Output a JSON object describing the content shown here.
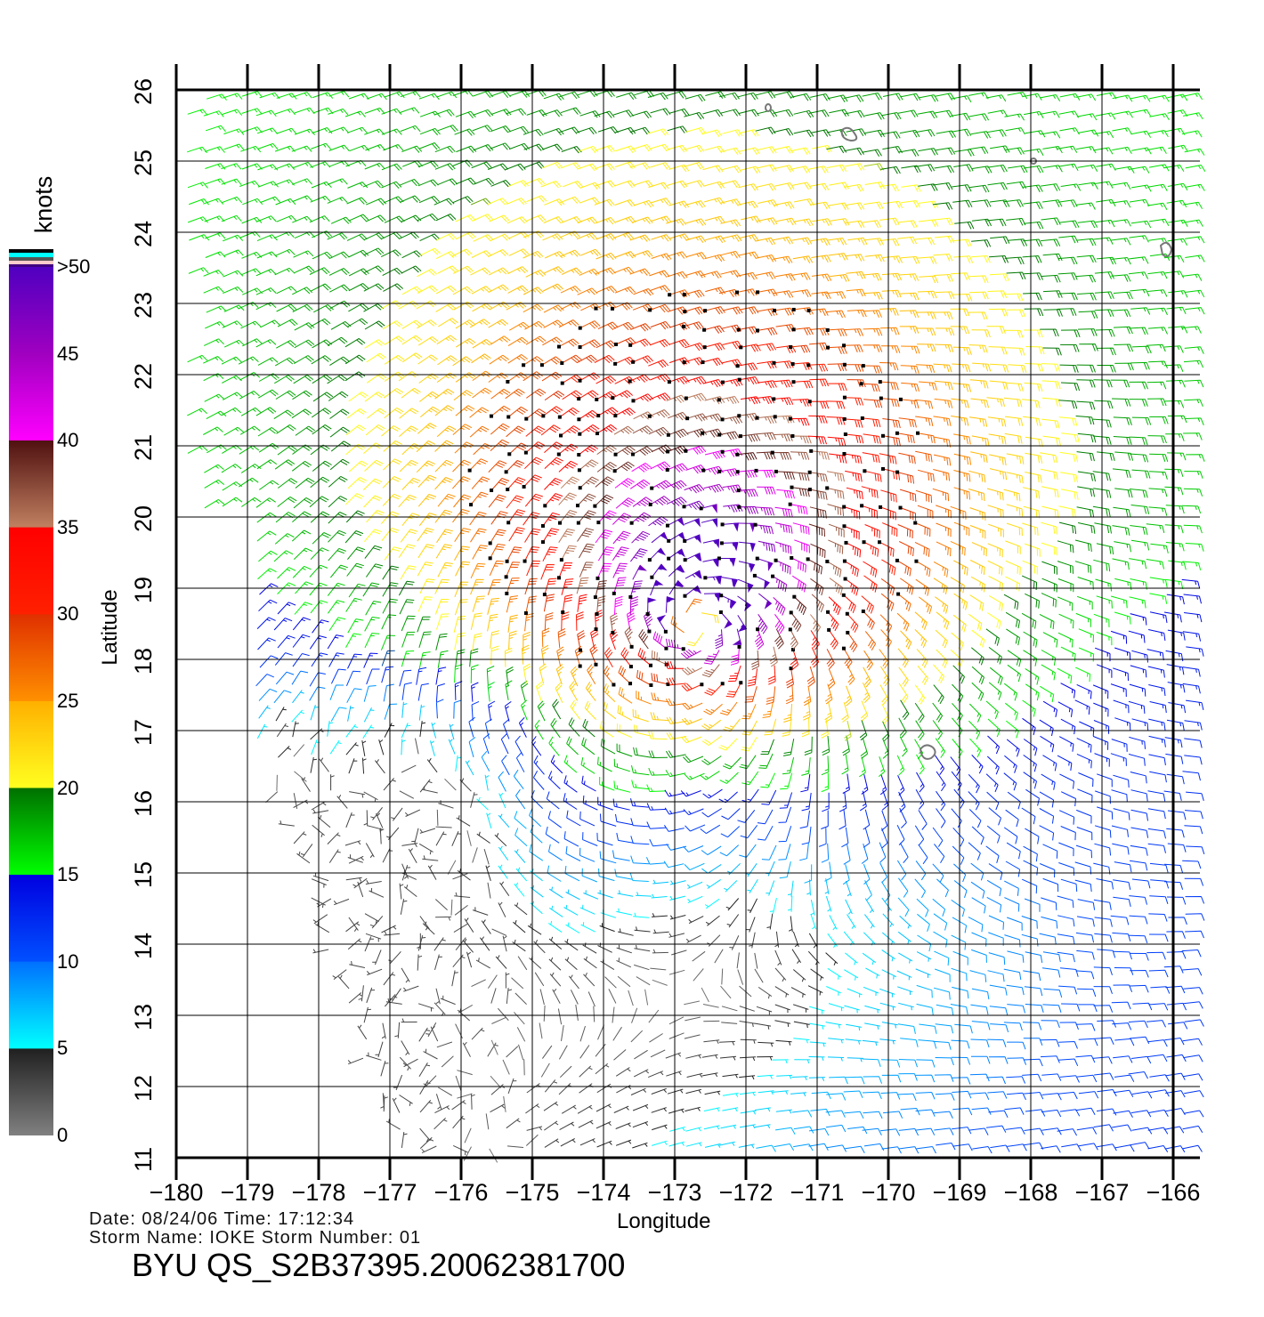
{
  "header": {
    "date_line": "Date: 08/24/06   Time: 17:12:34",
    "storm_line": "Storm  Name: IOKE   Storm  Number: 01",
    "title": "BYU  QS_S2B37395.20062381700"
  },
  "colorbar": {
    "unit_label": "knots",
    "tick_labels": [
      "0",
      "5",
      "10",
      "15",
      "20",
      "25",
      "30",
      "35",
      "40",
      "45",
      ">50"
    ],
    "tick_values": [
      0,
      5,
      10,
      15,
      20,
      25,
      30,
      35,
      40,
      45,
      50
    ],
    "stops": [
      {
        "v": 0,
        "c": "#808080"
      },
      {
        "v": 5,
        "c": "#202020"
      },
      {
        "v": 5.01,
        "c": "#00ffff"
      },
      {
        "v": 10,
        "c": "#0070ff"
      },
      {
        "v": 10.01,
        "c": "#0050ff"
      },
      {
        "v": 15,
        "c": "#0000e0"
      },
      {
        "v": 15.01,
        "c": "#00ff00"
      },
      {
        "v": 20,
        "c": "#007000"
      },
      {
        "v": 20.01,
        "c": "#ffff20"
      },
      {
        "v": 25,
        "c": "#ffb000"
      },
      {
        "v": 25.01,
        "c": "#ff9000"
      },
      {
        "v": 30,
        "c": "#e03000"
      },
      {
        "v": 30.01,
        "c": "#ff2000"
      },
      {
        "v": 35,
        "c": "#ff0000"
      },
      {
        "v": 35.01,
        "c": "#c08060"
      },
      {
        "v": 40,
        "c": "#501010"
      },
      {
        "v": 40.01,
        "c": "#ff00ff"
      },
      {
        "v": 45,
        "c": "#a000c0"
      },
      {
        "v": 50,
        "c": "#5000c0"
      }
    ]
  },
  "chart_data": {
    "type": "wind-barb",
    "title": "BYU  QS_S2B37395.20062381700",
    "xlabel": "Longitude",
    "ylabel": "Latitude",
    "xlim": [
      -180,
      -165.6
    ],
    "ylim": [
      11,
      26
    ],
    "grid": true,
    "x_ticks": [
      -180,
      -179,
      -178,
      -177,
      -176,
      -175,
      -174,
      -173,
      -172,
      -171,
      -170,
      -169,
      -168,
      -167,
      -166
    ],
    "x_tick_labels": [
      "−180",
      "−179",
      "−178",
      "−177",
      "−176",
      "−175",
      "−174",
      "−173",
      "−172",
      "−171",
      "−170",
      "−169",
      "−168",
      "−167",
      "−166"
    ],
    "y_ticks": [
      11,
      12,
      13,
      14,
      15,
      16,
      17,
      18,
      19,
      20,
      21,
      22,
      23,
      24,
      25,
      26
    ],
    "y_tick_labels": [
      "11",
      "12",
      "13",
      "14",
      "15",
      "16",
      "17",
      "18",
      "19",
      "20",
      "21",
      "22",
      "23",
      "24",
      "25",
      "26"
    ],
    "units": "knots",
    "storm": {
      "name": "IOKE",
      "center_lon": -172.7,
      "center_lat": 18.6,
      "max_wind_kt": 55
    },
    "grid_spacing_deg": 0.25
  }
}
